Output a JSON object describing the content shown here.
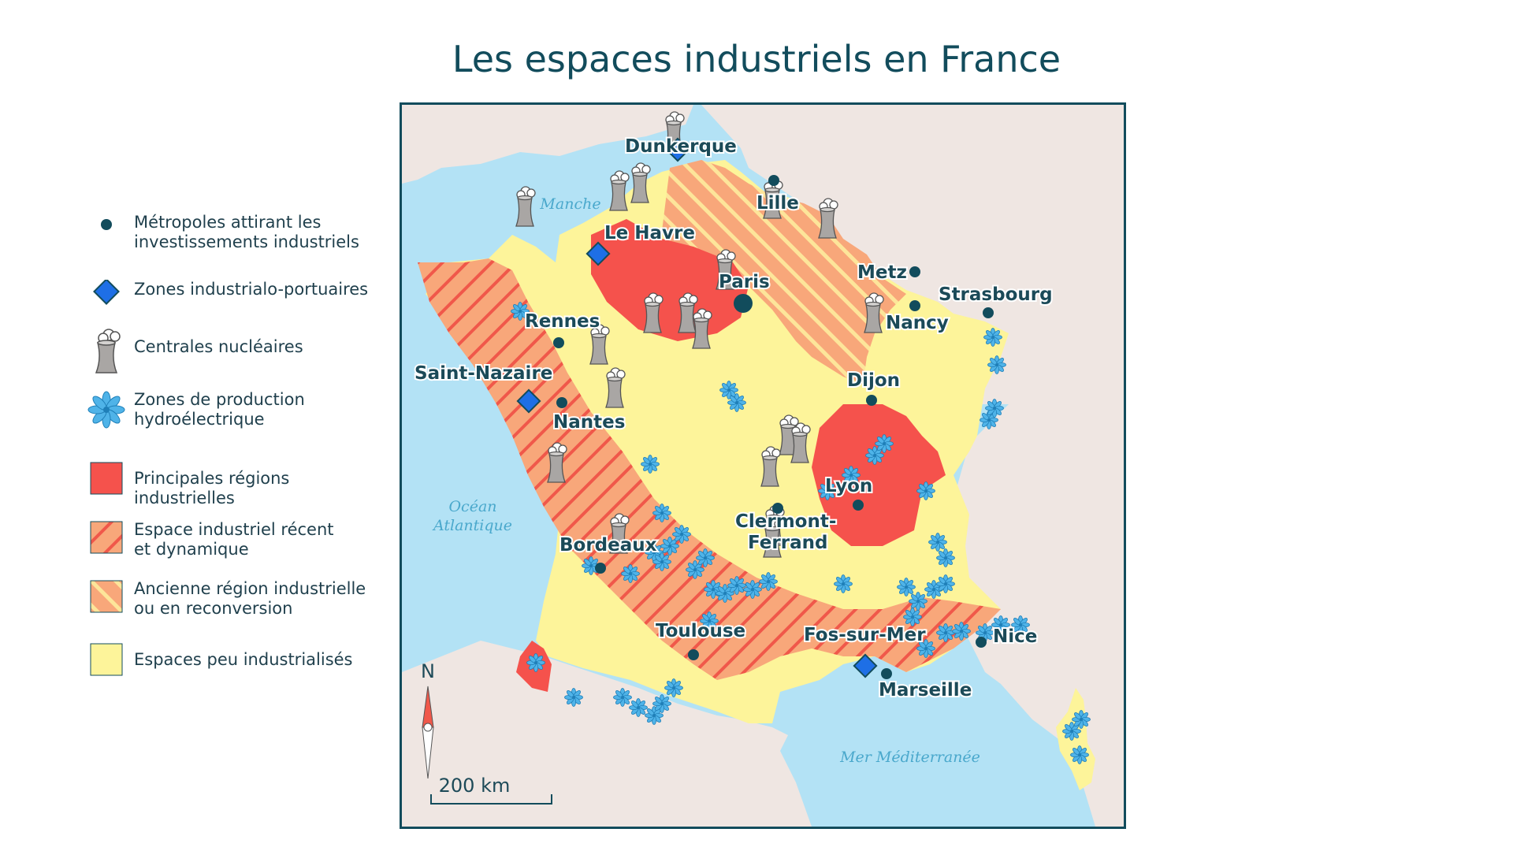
{
  "title": "Les espaces industriels en France",
  "legend": [
    {
      "symbol": "metropole-dot",
      "label_line1": "Métropoles attirant les",
      "label_line2": "investissements industriels"
    },
    {
      "symbol": "port-diamond",
      "label_line1": "Zones industrialo-portuaires",
      "label_line2": ""
    },
    {
      "symbol": "nuclear-plant",
      "label_line1": "Centrales nucléaires",
      "label_line2": ""
    },
    {
      "symbol": "hydro-flower",
      "label_line1": "Zones de production",
      "label_line2": "hydroélectrique"
    },
    {
      "symbol": "red-region",
      "label_line1": "Principales régions industrielles",
      "label_line2": ""
    },
    {
      "symbol": "recent-hatch",
      "label_line1": "Espace industriel récent",
      "label_line2": "et dynamique"
    },
    {
      "symbol": "old-hatch",
      "label_line1": "Ancienne région industrielle",
      "label_line2": "ou en reconversion"
    },
    {
      "symbol": "yellow-area",
      "label_line1": "Espaces peu industrialisés",
      "label_line2": ""
    }
  ],
  "colors": {
    "sea": "#b3e2f5",
    "land_foreign": "#efe6e2",
    "low_industry": "#fdf49a",
    "main_region": "#f5524c",
    "hatch_base": "#f8a77a",
    "hatch_recent_stripe": "#f0584a",
    "hatch_old_stripe": "#fde59a",
    "dark": "#124c5c",
    "port": "#1e6fe6",
    "hydro": "#4fb3e8"
  },
  "map": {
    "seas": {
      "manche": "Manche",
      "ocean_line1": "Océan",
      "ocean_line2": "Atlantique",
      "mediterranee": "Mer Méditerranée"
    },
    "cities": {
      "dunkerque": "Dunkerque",
      "lille": "Lille",
      "le_havre": "Le Havre",
      "paris": "Paris",
      "metz": "Metz",
      "strasbourg": "Strasbourg",
      "nancy": "Nancy",
      "rennes": "Rennes",
      "saint_nazaire": "Saint-Nazaire",
      "nantes": "Nantes",
      "dijon": "Dijon",
      "lyon": "Lyon",
      "clermont_line1": "Clermont-",
      "clermont_line2": "Ferrand",
      "bordeaux": "Bordeaux",
      "toulouse": "Toulouse",
      "fos_sur_mer": "Fos-sur-Mer",
      "nice": "Nice",
      "marseille": "Marseille"
    },
    "compass": "N",
    "scale": "200 km"
  }
}
